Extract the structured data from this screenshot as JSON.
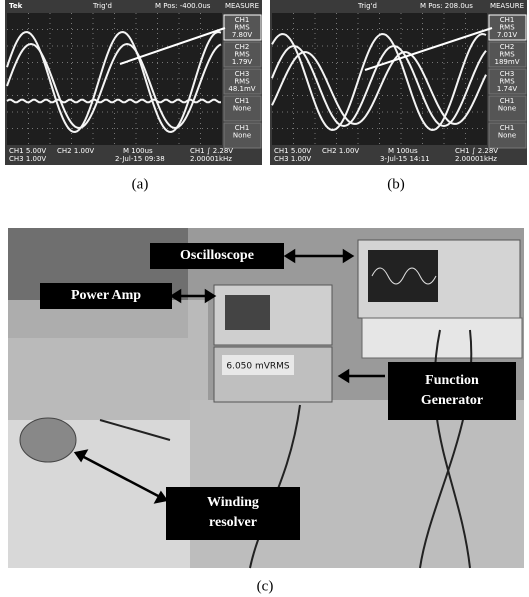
{
  "panels": {
    "a": {
      "label": "(a)",
      "header": {
        "brand": "Tek",
        "trigger": "Trig'd",
        "position": "M Pos: -400.0us",
        "menu": "MEASURE"
      },
      "measurements": [
        {
          "lines": [
            "CH1",
            "RMS",
            "7.80V"
          ]
        },
        {
          "lines": [
            "CH2",
            "RMS",
            "1.79V"
          ]
        },
        {
          "lines": [
            "CH3",
            "RMS",
            "48.1mV"
          ]
        },
        {
          "lines": [
            "CH1",
            "None"
          ]
        },
        {
          "lines": [
            "CH1",
            "None"
          ]
        }
      ],
      "status": [
        "CH1 5.00V",
        "CH2 1.00V",
        "M 100us",
        "CH1 ∫ 2.28V",
        "CH3 1.00V",
        "2-Jul-15 09:38",
        "2.00001kHz"
      ]
    },
    "b": {
      "label": "(b)",
      "header": {
        "trigger": "Trig'd",
        "position": "M Pos: 208.0us",
        "menu": "MEASURE"
      },
      "measurements": [
        {
          "lines": [
            "CH1",
            "RMS",
            "7.01V"
          ]
        },
        {
          "lines": [
            "CH2",
            "RMS",
            "189mV"
          ]
        },
        {
          "lines": [
            "CH3",
            "RMS",
            "1.74V"
          ]
        },
        {
          "lines": [
            "CH1",
            "None"
          ]
        },
        {
          "lines": [
            "CH1",
            "None"
          ]
        }
      ],
      "status": [
        "CH1 5.00V",
        "CH2 1.00V",
        "M 100us",
        "CH1 ∫ 2.28V",
        "CH3 1.00V",
        "3-Jul-15 14:11",
        "2.00001kHz"
      ]
    },
    "c": {
      "label": "(c)",
      "callouts": [
        {
          "lines": [
            "Oscilloscope"
          ]
        },
        {
          "lines": [
            "Power Amp"
          ]
        },
        {
          "lines": [
            "Function",
            "Generator"
          ]
        },
        {
          "lines": [
            "Winding",
            "resolver"
          ]
        }
      ],
      "generator_display": "6.050 mVRMS"
    }
  }
}
